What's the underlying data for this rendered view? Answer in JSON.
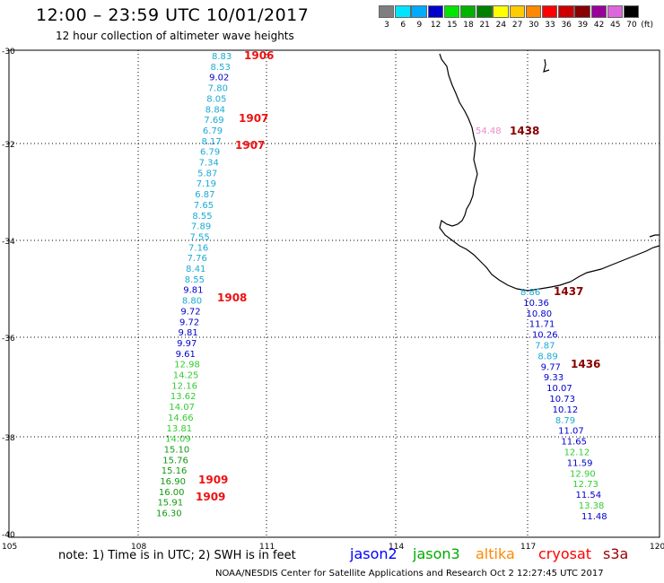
{
  "header": {
    "title": "12:00 – 23:59 UTC 10/01/2017",
    "subtitle": "12 hour collection of altimeter wave heights"
  },
  "scale": {
    "unit": "(ft)",
    "items": [
      {
        "label": "3",
        "color": "#7f7f7f"
      },
      {
        "label": "6",
        "color": "#00e5ff"
      },
      {
        "label": "9",
        "color": "#00aaff"
      },
      {
        "label": "12",
        "color": "#0000cc"
      },
      {
        "label": "15",
        "color": "#00e600"
      },
      {
        "label": "18",
        "color": "#00b300"
      },
      {
        "label": "21",
        "color": "#008000"
      },
      {
        "label": "24",
        "color": "#ffff00"
      },
      {
        "label": "27",
        "color": "#ffcc00"
      },
      {
        "label": "30",
        "color": "#ff8800"
      },
      {
        "label": "33",
        "color": "#ff0000"
      },
      {
        "label": "36",
        "color": "#cc0000"
      },
      {
        "label": "39",
        "color": "#880000"
      },
      {
        "label": "42",
        "color": "#990099"
      },
      {
        "label": "45",
        "color": "#dd66dd"
      },
      {
        "label": "70",
        "color": "#000000"
      }
    ]
  },
  "axes": {
    "lat_ticks": [
      "-30",
      "-32",
      "-34",
      "-36",
      "-38",
      "-40"
    ],
    "lon_ticks": [
      "105",
      "108",
      "111",
      "114",
      "117",
      "120"
    ]
  },
  "note": "note:  1) Time is in UTC; 2) SWH is in feet",
  "legend": [
    {
      "name": "jason2",
      "color": "#0000ff"
    },
    {
      "name": "jason3",
      "color": "#00aa00"
    },
    {
      "name": "altika",
      "color": "#ff8800"
    },
    {
      "name": "cryosat",
      "color": "#ff0000"
    },
    {
      "name": "s3a",
      "color": "#990000"
    }
  ],
  "credit": "NOAA/NESDIS Center for Satellite Applications and Research     Oct  2 12:27:45 UTC 2017",
  "track1_values": [
    {
      "v": "8.83",
      "c": "#1aa9d6"
    },
    {
      "v": "8.53",
      "c": "#1aa9d6"
    },
    {
      "v": "9.02",
      "c": "#0000cc"
    },
    {
      "v": "7.80",
      "c": "#1aa9d6"
    },
    {
      "v": "8.05",
      "c": "#1aa9d6"
    },
    {
      "v": "8.84",
      "c": "#1aa9d6"
    },
    {
      "v": "7.69",
      "c": "#1aa9d6"
    },
    {
      "v": "6.79",
      "c": "#1aa9d6"
    },
    {
      "v": "8.17",
      "c": "#1aa9d6"
    },
    {
      "v": "6.79",
      "c": "#1aa9d6"
    },
    {
      "v": "7.34",
      "c": "#1aa9d6"
    },
    {
      "v": "5.87",
      "c": "#1aa9d6"
    },
    {
      "v": "7.19",
      "c": "#1aa9d6"
    },
    {
      "v": "6.87",
      "c": "#1aa9d6"
    },
    {
      "v": "7.65",
      "c": "#1aa9d6"
    },
    {
      "v": "8.55",
      "c": "#1aa9d6"
    },
    {
      "v": "7.89",
      "c": "#1aa9d6"
    },
    {
      "v": "7.55",
      "c": "#1aa9d6"
    },
    {
      "v": "7.16",
      "c": "#1aa9d6"
    },
    {
      "v": "7.76",
      "c": "#1aa9d6"
    },
    {
      "v": "8.41",
      "c": "#1aa9d6"
    },
    {
      "v": "8.55",
      "c": "#1aa9d6"
    },
    {
      "v": "9.81",
      "c": "#0000cc"
    },
    {
      "v": "8.80",
      "c": "#1aa9d6"
    },
    {
      "v": "9.72",
      "c": "#0000cc"
    },
    {
      "v": "9.72",
      "c": "#0000cc"
    },
    {
      "v": "9.81",
      "c": "#0000cc"
    },
    {
      "v": "9.97",
      "c": "#0000cc"
    },
    {
      "v": "9.61",
      "c": "#0000cc"
    },
    {
      "v": "12.98",
      "c": "#33cc33"
    },
    {
      "v": "14.25",
      "c": "#33cc33"
    },
    {
      "v": "12.16",
      "c": "#33cc33"
    },
    {
      "v": "13.62",
      "c": "#33cc33"
    },
    {
      "v": "14.07",
      "c": "#33cc33"
    },
    {
      "v": "14.66",
      "c": "#33cc33"
    },
    {
      "v": "13.81",
      "c": "#33cc33"
    },
    {
      "v": "14.09",
      "c": "#33cc33"
    },
    {
      "v": "15.10",
      "c": "#119911"
    },
    {
      "v": "15.76",
      "c": "#119911"
    },
    {
      "v": "15.16",
      "c": "#119911"
    },
    {
      "v": "16.90",
      "c": "#119911"
    },
    {
      "v": "16.00",
      "c": "#119911"
    },
    {
      "v": "15.91",
      "c": "#119911"
    },
    {
      "v": "16.30",
      "c": "#119911"
    }
  ],
  "track1_times": [
    "1906",
    "1907",
    "1907",
    "1908",
    "1909",
    "1909"
  ],
  "track2_values": [
    {
      "v": "8.86",
      "c": "#1aa9d6"
    },
    {
      "v": "10.36",
      "c": "#0000cc"
    },
    {
      "v": "10.80",
      "c": "#0000cc"
    },
    {
      "v": "11.71",
      "c": "#0000cc"
    },
    {
      "v": "10.26",
      "c": "#0000cc"
    },
    {
      "v": "7.87",
      "c": "#1aa9d6"
    },
    {
      "v": "8.89",
      "c": "#1aa9d6"
    },
    {
      "v": "9.77",
      "c": "#0000cc"
    },
    {
      "v": "9.33",
      "c": "#0000cc"
    },
    {
      "v": "10.07",
      "c": "#0000cc"
    },
    {
      "v": "10.73",
      "c": "#0000cc"
    },
    {
      "v": "10.12",
      "c": "#0000cc"
    },
    {
      "v": "8.79",
      "c": "#1aa9d6"
    },
    {
      "v": "11.07",
      "c": "#0000cc"
    },
    {
      "v": "11.65",
      "c": "#0000cc"
    },
    {
      "v": "12.12",
      "c": "#33cc33"
    },
    {
      "v": "11.59",
      "c": "#0000cc"
    },
    {
      "v": "12.90",
      "c": "#33cc33"
    },
    {
      "v": "12.73",
      "c": "#33cc33"
    },
    {
      "v": "11.54",
      "c": "#0000cc"
    },
    {
      "v": "13.38",
      "c": "#33cc33"
    },
    {
      "v": "11.48",
      "c": "#0000cc"
    }
  ],
  "track2_times": [
    "1437",
    "1436"
  ],
  "land_value": {
    "v": "54.48",
    "c": "#ee88cc"
  },
  "land_time": "1438"
}
